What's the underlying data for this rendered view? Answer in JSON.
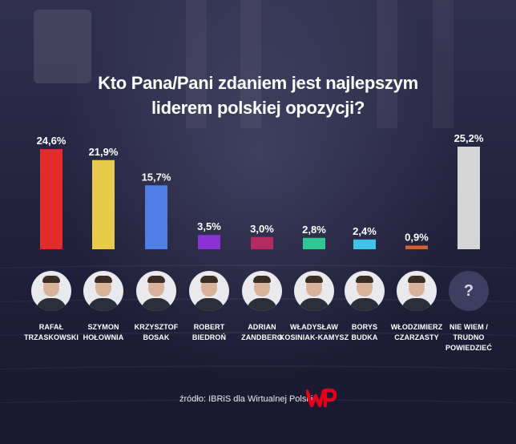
{
  "title": {
    "line1": "Kto Pana/Pani zdaniem jest najlepszym",
    "line2": "liderem polskiej opozycji?"
  },
  "chart_data": {
    "type": "bar",
    "unit": "%",
    "categories": [
      [
        "RAFAŁ",
        "TRZASKOWSKI"
      ],
      [
        "SZYMON",
        "HOŁOWNIA"
      ],
      [
        "KRZYSZTOF",
        "BOSAK"
      ],
      [
        "ROBERT",
        "BIEDROŃ"
      ],
      [
        "ADRIAN",
        "ZANDBERG"
      ],
      [
        "WŁADYSŁAW",
        "KOSINIAK-KAMYSZ"
      ],
      [
        "BORYS",
        "BUDKA"
      ],
      [
        "WŁODZIMIERZ",
        "CZARZASTY"
      ],
      [
        "NIE WIEM /",
        "TRUDNO",
        "POWIEDZIEĆ"
      ]
    ],
    "values": [
      24.6,
      21.9,
      15.7,
      3.5,
      3.0,
      2.8,
      2.4,
      0.9,
      25.2
    ],
    "value_labels": [
      "24,6%",
      "21,9%",
      "15,7%",
      "3,5%",
      "3,0%",
      "2,8%",
      "2,4%",
      "0,9%",
      "25,2%"
    ],
    "colors": [
      "#e32b2b",
      "#e8cb4b",
      "#4f7fe6",
      "#8a32d4",
      "#b02b5e",
      "#2ec796",
      "#3fc3e8",
      "#d3622f",
      "#d6d6d6"
    ],
    "ylim": [
      0,
      25.2
    ],
    "grid": false,
    "legend": "none"
  },
  "unknown_symbol": "?",
  "source": {
    "text": "źródło: IBRiS dla Wirtualnej Polski",
    "logo_text": "WP",
    "logo_color": "#e3001b"
  }
}
